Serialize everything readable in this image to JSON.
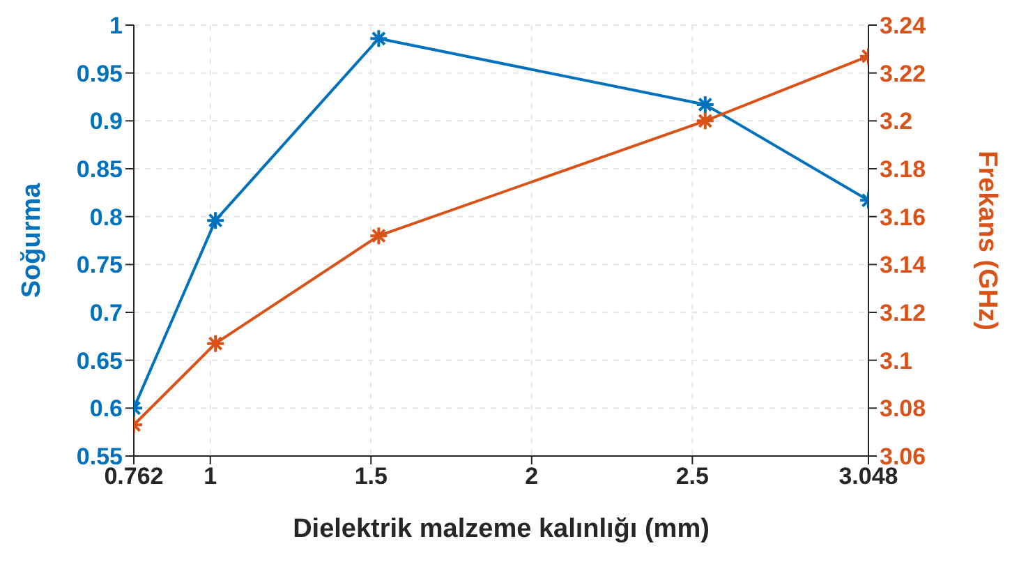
{
  "chart_data": {
    "type": "line",
    "xlabel": "Dielektrik malzeme kalınlığı (mm)",
    "ylabel": "Soğurma",
    "y2label": "Frekans (GHz)",
    "x": [
      0.762,
      1.016,
      1.524,
      2.54,
      3.048
    ],
    "series": [
      {
        "color": "#0072bd",
        "values": [
          0.6,
          0.796,
          0.986,
          0.917,
          0.817
        ]
      },
      {
        "color": "#d95319",
        "axis": "y2",
        "values": [
          3.073,
          3.107,
          3.152,
          3.2,
          3.227
        ]
      }
    ],
    "xlim": [
      0.762,
      3.048
    ],
    "xticks": [
      0.762,
      1,
      1.5,
      2,
      2.5,
      3.048
    ],
    "ylim": [
      0.55,
      1
    ],
    "yticks": [
      0.55,
      0.6,
      0.65,
      0.7,
      0.75,
      0.8,
      0.85,
      0.9,
      0.95,
      1
    ],
    "y2lim": [
      3.06,
      3.24
    ],
    "y2ticks": [
      3.06,
      3.08,
      3.1,
      3.12,
      3.14,
      3.16,
      3.18,
      3.2,
      3.22,
      3.24
    ],
    "grid": true,
    "marker": "cross",
    "line_style": "solid"
  }
}
